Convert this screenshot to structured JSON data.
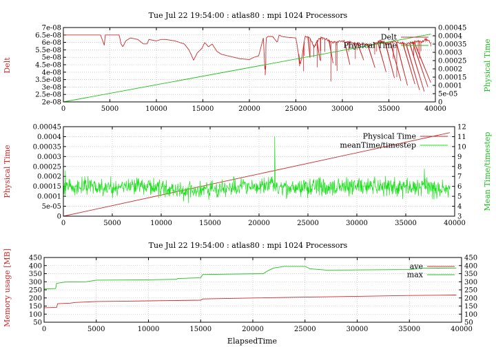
{
  "chart_data": [
    {
      "type": "line",
      "title": "Tue Jul 22 19:54:00 : atlas80 : mpi 1024 Processors",
      "xlabel": "",
      "ylabel": "Delt",
      "y2label": "Physical Time",
      "xlim": [
        0,
        40000
      ],
      "ylim": [
        2e-08,
        7e-08
      ],
      "y2lim": [
        0,
        0.00045
      ],
      "xticks": [
        "0",
        "5000",
        "10000",
        "15000",
        "20000",
        "25000",
        "30000",
        "35000",
        "40000"
      ],
      "yticks": [
        "7e-08",
        "6.5e-08",
        "6e-08",
        "5.5e-08",
        "5e-08",
        "4.5e-08",
        "4e-08",
        "3.5e-08",
        "3e-08",
        "2.5e-08",
        "2e-08"
      ],
      "y2ticks": [
        "0.00045",
        "0.0004",
        "0.00035",
        "0.0003",
        "0.00025",
        "0.0002",
        "0.00015",
        "0.0001",
        "5e-05",
        "0"
      ],
      "legend_placement": "top-right",
      "grid": true,
      "series": [
        {
          "name": "Delt",
          "axis": "y1",
          "color": "#cc2a2a",
          "x": [
            0,
            2000,
            4000,
            4400,
            4500,
            6000,
            6200,
            6400,
            6700,
            7200,
            8000,
            8600,
            9000,
            9200,
            10000,
            10500,
            11000,
            12000,
            13000,
            13500,
            13800,
            14000,
            14400,
            14900,
            15200,
            15600,
            16000,
            16500,
            17000,
            18000,
            19000,
            20000,
            20500,
            21000,
            21500,
            21700,
            21800,
            22000,
            22500,
            23000,
            23200,
            23500,
            24000,
            25000,
            25500,
            26000,
            26500,
            27000,
            27500,
            28000,
            29000,
            30000,
            31000,
            32000,
            33000,
            34000,
            35000,
            35500,
            36000,
            37000,
            38000,
            38500,
            39000,
            39500
          ],
          "y": [
            6.5e-08,
            6.5e-08,
            6.5e-08,
            5.8e-08,
            6.5e-08,
            6.5e-08,
            5.9e-08,
            5.7e-08,
            6.1e-08,
            6.3e-08,
            6.2e-08,
            5.9e-08,
            5.9e-08,
            6.2e-08,
            6.1e-08,
            6.2e-08,
            6.2e-08,
            6.1e-08,
            5.9e-08,
            5.5e-08,
            5.1e-08,
            4.8e-08,
            5.3e-08,
            5.6e-08,
            6e-08,
            5.7e-08,
            5.9e-08,
            5.4e-08,
            5.2e-08,
            5.05e-08,
            4.9e-08,
            4.85e-08,
            5e-08,
            5.1e-08,
            6.3e-08,
            3.8e-08,
            6.3e-08,
            6.4e-08,
            6.4e-08,
            6e-08,
            6.5e-08,
            6.4e-08,
            6.35e-08,
            6.3e-08,
            4.5e-08,
            6.4e-08,
            6.3e-08,
            5.7e-08,
            6.3e-08,
            6.3e-08,
            6e-08,
            6.1e-08,
            6e-08,
            5.9e-08,
            5.8e-08,
            6.1e-08,
            5.9e-08,
            6.1e-08,
            6e-08,
            5.9e-08,
            6.1e-08,
            6.05e-08,
            6.2e-08,
            6e-08
          ],
          "spikes": [
            [
              21700,
              3.8e-08
            ],
            [
              25400,
              4.4e-08
            ],
            [
              26500,
              5e-08
            ],
            [
              27600,
              4.8e-08
            ],
            [
              29000,
              4.6e-08
            ],
            [
              30800,
              4.5e-08
            ],
            [
              32300,
              4.8e-08
            ],
            [
              33500,
              4.3e-08
            ],
            [
              34700,
              4e-08
            ],
            [
              35600,
              3.6e-08
            ],
            [
              36300,
              3.4e-08
            ],
            [
              37000,
              3.1e-08
            ],
            [
              37800,
              3.2e-08
            ],
            [
              38300,
              2.8e-08
            ],
            [
              38800,
              2.7e-08
            ],
            [
              39200,
              3e-08
            ],
            [
              39500,
              3.3e-08
            ]
          ]
        },
        {
          "name": "Physical Time",
          "axis": "y2",
          "color": "#19c419",
          "x": [
            0,
            39500
          ],
          "y": [
            0,
            0.00041
          ]
        }
      ]
    },
    {
      "type": "line",
      "title": "",
      "xlabel": "",
      "ylabel": "Physical Time",
      "y2label": "Mean Time/timestep",
      "xlim": [
        0,
        40000
      ],
      "ylim": [
        0,
        0.00045
      ],
      "y2lim": [
        3,
        12
      ],
      "xticks": [
        "0",
        "5000",
        "10000",
        "15000",
        "20000",
        "25000",
        "30000",
        "35000",
        "40000"
      ],
      "yticks": [
        "0.00045",
        "0.0004",
        "0.00035",
        "0.0003",
        "0.00025",
        "0.0002",
        "0.00015",
        "0.0001",
        "5e-05",
        "0"
      ],
      "y2ticks": [
        "12",
        "11",
        "10",
        "9",
        "8",
        "7",
        "6",
        "5",
        "4",
        "3"
      ],
      "legend_placement": "top-right",
      "grid": true,
      "series": [
        {
          "name": "Physical Time",
          "axis": "y1",
          "color": "#cc2a2a",
          "x": [
            0,
            39500
          ],
          "y": [
            0,
            0.00042
          ]
        },
        {
          "name": "meanTime/timestep",
          "axis": "y2",
          "color": "#19e019",
          "x": [
            0,
            2000,
            4000,
            6000,
            8000,
            10000,
            12000,
            14000,
            16000,
            18000,
            20000,
            21500,
            22000,
            24000,
            26000,
            28000,
            30000,
            32000,
            34000,
            36000,
            37000,
            38000,
            39500
          ],
          "y": [
            6.0,
            6.0,
            5.9,
            6.0,
            6.1,
            5.8,
            5.5,
            5.5,
            5.8,
            5.9,
            5.9,
            6.2,
            5.8,
            5.8,
            6.0,
            5.9,
            6.1,
            6.0,
            5.9,
            5.9,
            6.3,
            5.7,
            5.8
          ],
          "noise": 0.65,
          "spikes": [
            [
              200,
              7.6
            ],
            [
              21600,
              11.0
            ],
            [
              12800,
              4.3
            ],
            [
              36900,
              7.8
            ],
            [
              17400,
              7.0
            ]
          ]
        }
      ]
    },
    {
      "type": "line",
      "title": "Tue Jul 22 19:54:00 : atlas80 : mpi 1024 Processors",
      "xlabel": "ElapsedTime",
      "ylabel": "Memory usage [MB]",
      "y2label": "",
      "xlim": [
        0,
        40000
      ],
      "ylim": [
        50,
        450
      ],
      "y2lim": [
        50,
        450
      ],
      "xticks": [
        "0",
        "5000",
        "10000",
        "15000",
        "20000",
        "25000",
        "30000",
        "35000",
        "40000"
      ],
      "yticks": [
        "450",
        "400",
        "350",
        "300",
        "250",
        "200",
        "150",
        "100",
        "50"
      ],
      "y2ticks": [
        "450",
        "400",
        "350",
        "300",
        "250",
        "200",
        "150",
        "100",
        "50"
      ],
      "legend_placement": "top-right",
      "grid": true,
      "series": [
        {
          "name": "ave",
          "axis": "y1",
          "color": "#cc2a2a",
          "x": [
            0,
            1200,
            1300,
            2500,
            3000,
            5000,
            8000,
            10000,
            15000,
            15200,
            20000,
            25000,
            30000,
            35000,
            39500
          ],
          "y": [
            140,
            142,
            165,
            168,
            172,
            178,
            180,
            182,
            186,
            194,
            200,
            205,
            210,
            215,
            218
          ]
        },
        {
          "name": "max",
          "axis": "y1",
          "color": "#19c419",
          "x": [
            0,
            1100,
            1200,
            2000,
            4000,
            5000,
            10000,
            12700,
            12800,
            15000,
            15200,
            21000,
            21500,
            22000,
            23000,
            25000,
            25500,
            27000,
            30000,
            35000,
            36000,
            39500
          ],
          "y": [
            255,
            258,
            290,
            298,
            300,
            310,
            312,
            315,
            320,
            325,
            345,
            350,
            370,
            385,
            395,
            395,
            380,
            372,
            373,
            375,
            383,
            385
          ]
        }
      ]
    }
  ]
}
